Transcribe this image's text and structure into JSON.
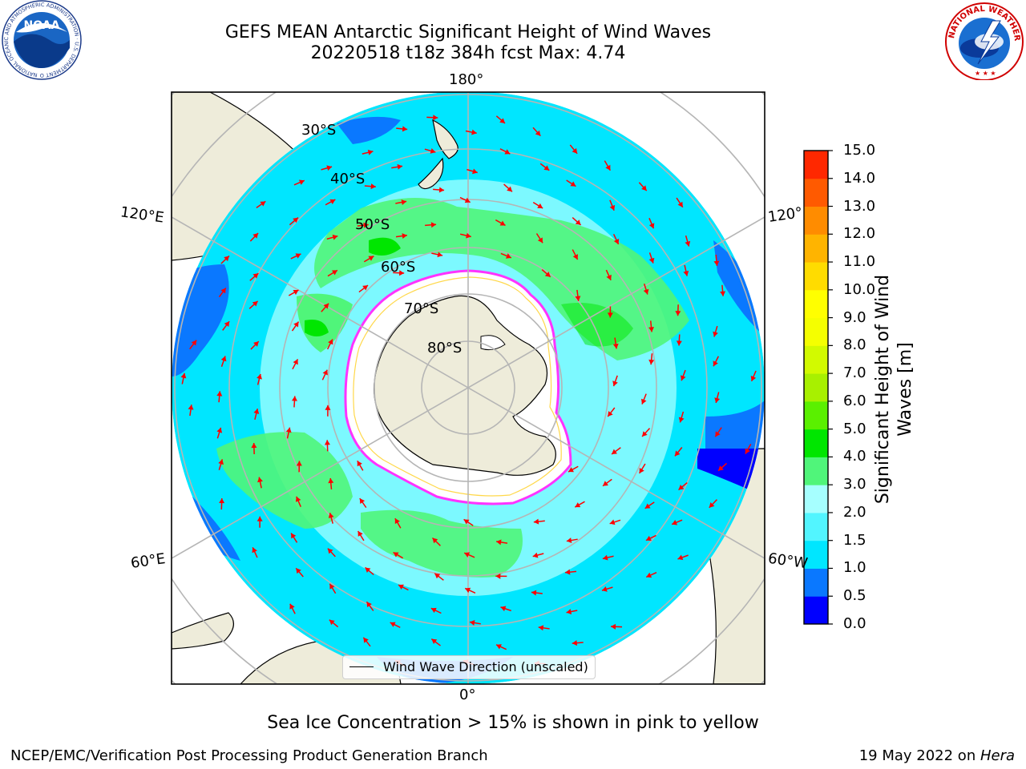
{
  "header": {
    "title_line1": "GEFS MEAN Antarctic Significant Height of Wind Waves",
    "title_line2": "20220518 t18z 384h fcst   Max: 4.74"
  },
  "logos": {
    "noaa_text": "NOAA",
    "noaa_ring_text": "NATIONAL OCEANIC AND ATMOSPHERIC ADMINISTRATION · U.S. DEPARTMENT OF COMMERCE",
    "nws_ring_text": "NATIONAL WEATHER SERVICE"
  },
  "map": {
    "projection": "south-polar-stereographic",
    "longitude_labels": {
      "top": "180°",
      "bottom": "0°",
      "left_upper": "120°E",
      "left_lower": "60°E",
      "right_upper": "120°",
      "right_lower": "60°W"
    },
    "latitude_labels": [
      "30°S",
      "40°S",
      "50°S",
      "60°S",
      "70°S",
      "80°S"
    ],
    "legend_label": "Wind Wave Direction (unscaled)",
    "colors": {
      "land": "#eeecda",
      "ice": "#ffffff",
      "ice_edge": "#ff33ff",
      "ice_edge_inner": "#ffd84a",
      "arrow": "#ff0000",
      "grid": "#b5b5b5"
    }
  },
  "colorbar": {
    "title": "Significant Height of Wind Waves [m]",
    "ticks": [
      "0.0",
      "0.5",
      "1.0",
      "1.5",
      "2.0",
      "3.0",
      "4.0",
      "5.0",
      "6.0",
      "7.0",
      "8.0",
      "9.0",
      "10.0",
      "11.0",
      "12.0",
      "13.0",
      "14.0",
      "15.0"
    ],
    "colors": [
      "#0000ff",
      "#0a78ff",
      "#00e6ff",
      "#52f5ff",
      "#a6ffff",
      "#50f57a",
      "#00e600",
      "#5af000",
      "#a8f000",
      "#d2fa00",
      "#f5ff00",
      "#ffff00",
      "#ffdc00",
      "#ffb400",
      "#ff8c00",
      "#ff5a00",
      "#ff2800"
    ]
  },
  "caption": "Sea Ice Concentration > 15% is shown in pink to yellow",
  "footer": {
    "left": "NCEP/EMC/Verification Post Processing Product Generation Branch",
    "right_prefix": "19 May 2022 on ",
    "right_host": "Hera"
  }
}
